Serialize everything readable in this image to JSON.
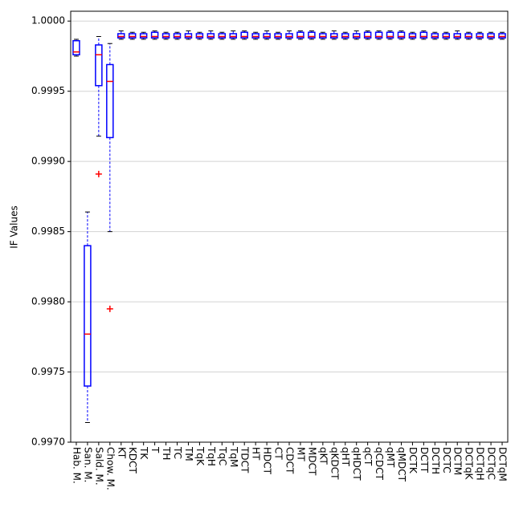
{
  "chart_data": {
    "type": "boxplot",
    "ylabel": "IF Values",
    "categories": [
      "Hab. M.",
      "San. M.",
      "Sald. M.",
      "Chow. M.",
      "KT",
      "KDCT",
      "TK",
      "T",
      "TH",
      "TC",
      "TM",
      "TqK",
      "TqH",
      "TqC",
      "TqM",
      "TDCT",
      "HT",
      "HDCT",
      "CT",
      "CDCT",
      "MT",
      "MDCT",
      "qKT",
      "qKDCT",
      "qHT",
      "qHDCT",
      "qCT",
      "qCDCT",
      "qMT",
      "qMDCT",
      "DCTK",
      "DCTT",
      "DCTH",
      "DCTC",
      "DCTM",
      "DCTqK",
      "DCTqH",
      "DCTqC",
      "DCTqM"
    ],
    "boxes": [
      {
        "whislo": 0.99975,
        "q1": 0.99976,
        "med": 0.99978,
        "q3": 0.99986,
        "whishi": 0.99987
      },
      {
        "whislo": 0.99714,
        "q1": 0.9974,
        "med": 0.99777,
        "q3": 0.9984,
        "whishi": 0.99864
      },
      {
        "whislo": 0.99918,
        "q1": 0.99954,
        "med": 0.99976,
        "q3": 0.99983,
        "whishi": 0.99989,
        "fliers": [
          0.99891
        ]
      },
      {
        "whislo": 0.9985,
        "q1": 0.99917,
        "med": 0.99957,
        "q3": 0.99969,
        "whishi": 0.99984,
        "fliers": [
          0.99795
        ]
      },
      {
        "whislo": 0.99987,
        "q1": 0.99988,
        "med": 0.99989,
        "q3": 0.99991,
        "whishi": 0.99993
      },
      {
        "whislo": 0.99987,
        "q1": 0.99988,
        "med": 0.99989,
        "q3": 0.99991,
        "whishi": 0.99992
      },
      {
        "whislo": 0.99987,
        "q1": 0.99988,
        "med": 0.99989,
        "q3": 0.99991,
        "whishi": 0.99992
      },
      {
        "whislo": 0.99987,
        "q1": 0.99988,
        "med": 0.99989,
        "q3": 0.99992,
        "whishi": 0.99993
      },
      {
        "whislo": 0.99987,
        "q1": 0.99988,
        "med": 0.99989,
        "q3": 0.99991,
        "whishi": 0.99992
      },
      {
        "whislo": 0.99987,
        "q1": 0.99988,
        "med": 0.99989,
        "q3": 0.99991,
        "whishi": 0.99992
      },
      {
        "whislo": 0.99987,
        "q1": 0.99988,
        "med": 0.99989,
        "q3": 0.99991,
        "whishi": 0.99993
      },
      {
        "whislo": 0.99987,
        "q1": 0.99988,
        "med": 0.99989,
        "q3": 0.99991,
        "whishi": 0.99992
      },
      {
        "whislo": 0.99987,
        "q1": 0.99988,
        "med": 0.99989,
        "q3": 0.99991,
        "whishi": 0.99993
      },
      {
        "whislo": 0.99987,
        "q1": 0.99988,
        "med": 0.99989,
        "q3": 0.99991,
        "whishi": 0.99992
      },
      {
        "whislo": 0.99987,
        "q1": 0.99988,
        "med": 0.99989,
        "q3": 0.99991,
        "whishi": 0.99993
      },
      {
        "whislo": 0.99987,
        "q1": 0.99988,
        "med": 0.99989,
        "q3": 0.99992,
        "whishi": 0.99993
      },
      {
        "whislo": 0.99987,
        "q1": 0.99988,
        "med": 0.99989,
        "q3": 0.99991,
        "whishi": 0.99992
      },
      {
        "whislo": 0.99987,
        "q1": 0.99988,
        "med": 0.99989,
        "q3": 0.99991,
        "whishi": 0.99993
      },
      {
        "whislo": 0.99987,
        "q1": 0.99988,
        "med": 0.99989,
        "q3": 0.99991,
        "whishi": 0.99992
      },
      {
        "whislo": 0.99987,
        "q1": 0.99988,
        "med": 0.99989,
        "q3": 0.99991,
        "whishi": 0.99993
      },
      {
        "whislo": 0.99987,
        "q1": 0.99988,
        "med": 0.99989,
        "q3": 0.99992,
        "whishi": 0.99993
      },
      {
        "whislo": 0.99987,
        "q1": 0.99988,
        "med": 0.99989,
        "q3": 0.99992,
        "whishi": 0.99993
      },
      {
        "whislo": 0.99987,
        "q1": 0.99988,
        "med": 0.99989,
        "q3": 0.99991,
        "whishi": 0.99992
      },
      {
        "whislo": 0.99987,
        "q1": 0.99988,
        "med": 0.99989,
        "q3": 0.99991,
        "whishi": 0.99993
      },
      {
        "whislo": 0.99987,
        "q1": 0.99988,
        "med": 0.99989,
        "q3": 0.99991,
        "whishi": 0.99992
      },
      {
        "whislo": 0.99987,
        "q1": 0.99988,
        "med": 0.99989,
        "q3": 0.99991,
        "whishi": 0.99993
      },
      {
        "whislo": 0.99987,
        "q1": 0.99988,
        "med": 0.99989,
        "q3": 0.99992,
        "whishi": 0.99993
      },
      {
        "whislo": 0.99987,
        "q1": 0.99988,
        "med": 0.99989,
        "q3": 0.99992,
        "whishi": 0.99993
      },
      {
        "whislo": 0.99987,
        "q1": 0.99988,
        "med": 0.99989,
        "q3": 0.99992,
        "whishi": 0.99993
      },
      {
        "whislo": 0.99987,
        "q1": 0.99988,
        "med": 0.99989,
        "q3": 0.99992,
        "whishi": 0.99993
      },
      {
        "whislo": 0.99987,
        "q1": 0.99988,
        "med": 0.99989,
        "q3": 0.99991,
        "whishi": 0.99992
      },
      {
        "whislo": 0.99987,
        "q1": 0.99988,
        "med": 0.99989,
        "q3": 0.99992,
        "whishi": 0.99993
      },
      {
        "whislo": 0.99987,
        "q1": 0.99988,
        "med": 0.99989,
        "q3": 0.99991,
        "whishi": 0.99992
      },
      {
        "whislo": 0.99987,
        "q1": 0.99988,
        "med": 0.99989,
        "q3": 0.99991,
        "whishi": 0.99992
      },
      {
        "whislo": 0.99987,
        "q1": 0.99988,
        "med": 0.99989,
        "q3": 0.99991,
        "whishi": 0.99993
      },
      {
        "whislo": 0.99987,
        "q1": 0.99988,
        "med": 0.99989,
        "q3": 0.99991,
        "whishi": 0.99992
      },
      {
        "whislo": 0.99987,
        "q1": 0.99988,
        "med": 0.99989,
        "q3": 0.99991,
        "whishi": 0.99992
      },
      {
        "whislo": 0.99987,
        "q1": 0.99988,
        "med": 0.99989,
        "q3": 0.99991,
        "whishi": 0.99992
      },
      {
        "whislo": 0.99987,
        "q1": 0.99988,
        "med": 0.99989,
        "q3": 0.99991,
        "whishi": 0.99992
      }
    ],
    "box_color": "#0000ff",
    "median_color": "#ff0000",
    "flier_color": "#ff0000",
    "ylim": [
      0.997,
      1.00007
    ],
    "yticks": [
      {
        "value": 0.997,
        "label": "0.9970"
      },
      {
        "value": 0.9975,
        "label": "0.9975"
      },
      {
        "value": 0.998,
        "label": "0.9980"
      },
      {
        "value": 0.9985,
        "label": "0.9985"
      },
      {
        "value": 0.999,
        "label": "0.9990"
      },
      {
        "value": 0.9995,
        "label": "0.9995"
      },
      {
        "value": 1.0,
        "label": "1.0000"
      }
    ],
    "grid": true
  }
}
